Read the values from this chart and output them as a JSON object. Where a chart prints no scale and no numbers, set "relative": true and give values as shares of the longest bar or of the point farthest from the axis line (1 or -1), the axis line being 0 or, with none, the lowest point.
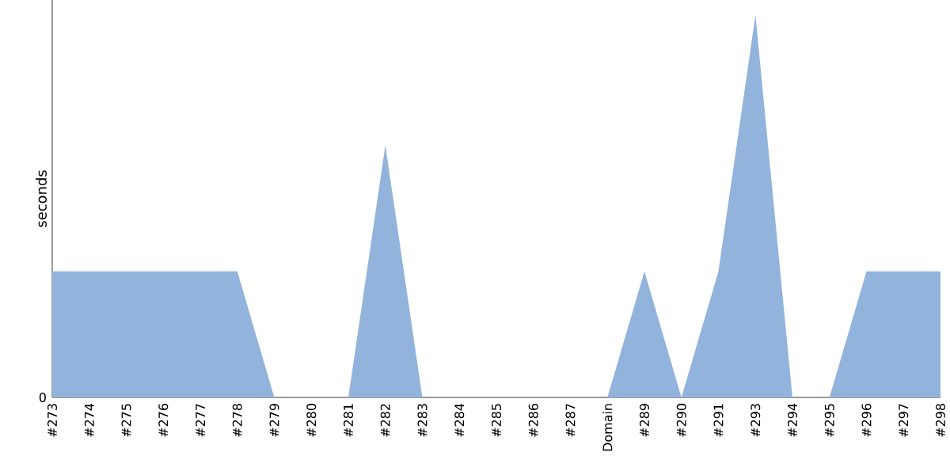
{
  "chart_data": {
    "type": "area",
    "ylabel": "seconds",
    "relative": true,
    "annotations": [
      "0"
    ],
    "categories": [
      "#273",
      "#274",
      "#275",
      "#276",
      "#277",
      "#278",
      "#279",
      "#280",
      "#281",
      "#282",
      "#283",
      "#284",
      "#285",
      "#286",
      "#287",
      "Domain",
      "#289",
      "#290",
      "#291",
      "#293",
      "#294",
      "#295",
      "#296",
      "#297",
      "#298"
    ],
    "series": [
      {
        "color": "#92b4dc",
        "values": [
          0.33,
          0.33,
          0.33,
          0.33,
          0.33,
          0.33,
          0,
          0,
          0,
          0.66,
          0,
          0,
          0,
          0,
          0,
          0,
          0.33,
          0,
          0.33,
          1,
          0,
          0,
          0.33,
          0.33,
          0.33
        ]
      }
    ]
  }
}
